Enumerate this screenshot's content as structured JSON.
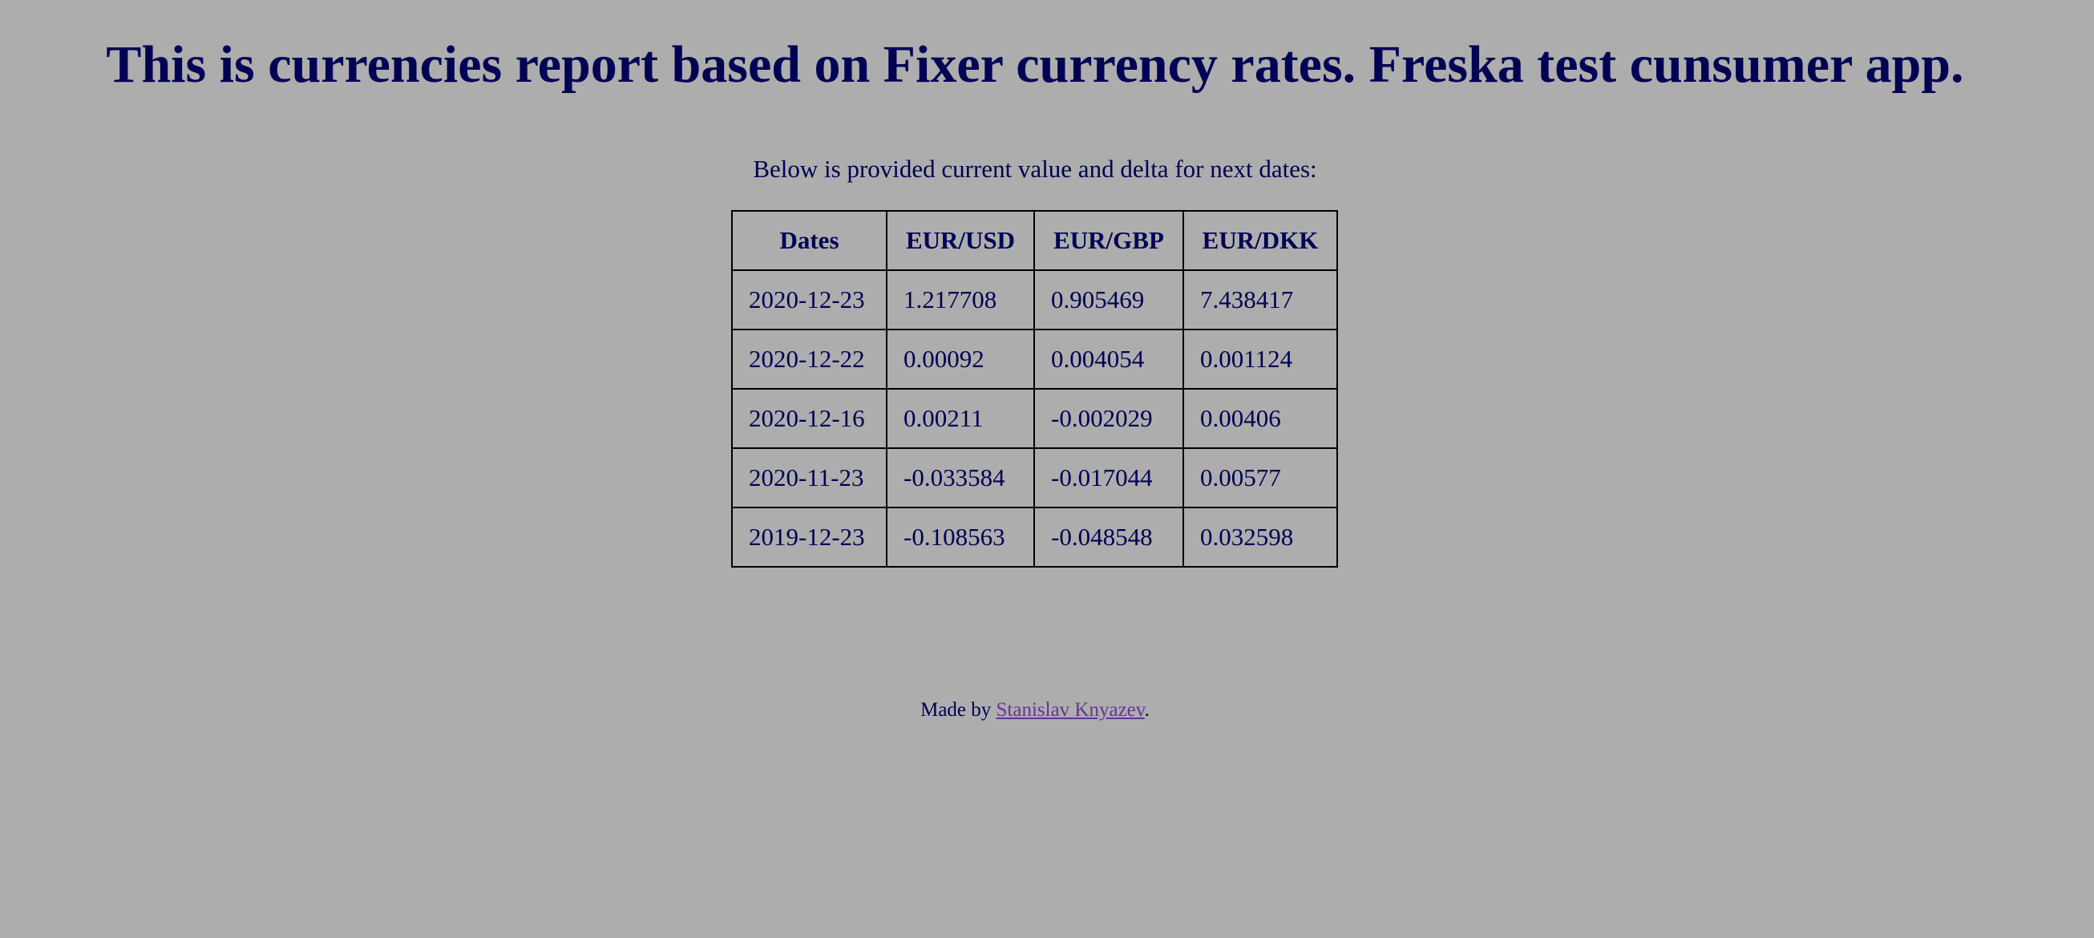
{
  "header": {
    "title": "This is currencies report based on Fixer currency rates. Freska test cunsumer app."
  },
  "intro": {
    "text": "Below is provided current value and delta for next dates:"
  },
  "table": {
    "headers": [
      "Dates",
      "EUR/USD",
      "EUR/GBP",
      "EUR/DKK"
    ],
    "rows": [
      [
        "2020-12-23",
        "1.217708",
        "0.905469",
        "7.438417"
      ],
      [
        "2020-12-22",
        "0.00092",
        "0.004054",
        "0.001124"
      ],
      [
        "2020-12-16",
        "0.00211",
        "-0.002029",
        "0.00406"
      ],
      [
        "2020-11-23",
        "-0.033584",
        "-0.017044",
        "0.00577"
      ],
      [
        "2019-12-23",
        "-0.108563",
        "-0.048548",
        "0.032598"
      ]
    ]
  },
  "footer": {
    "prefix": "Made by ",
    "author_link": "Stanislav Knyazev",
    "suffix": "."
  },
  "colors": {
    "background": "#adadad",
    "text": "#000055",
    "link": "#663399",
    "border": "#000000"
  }
}
